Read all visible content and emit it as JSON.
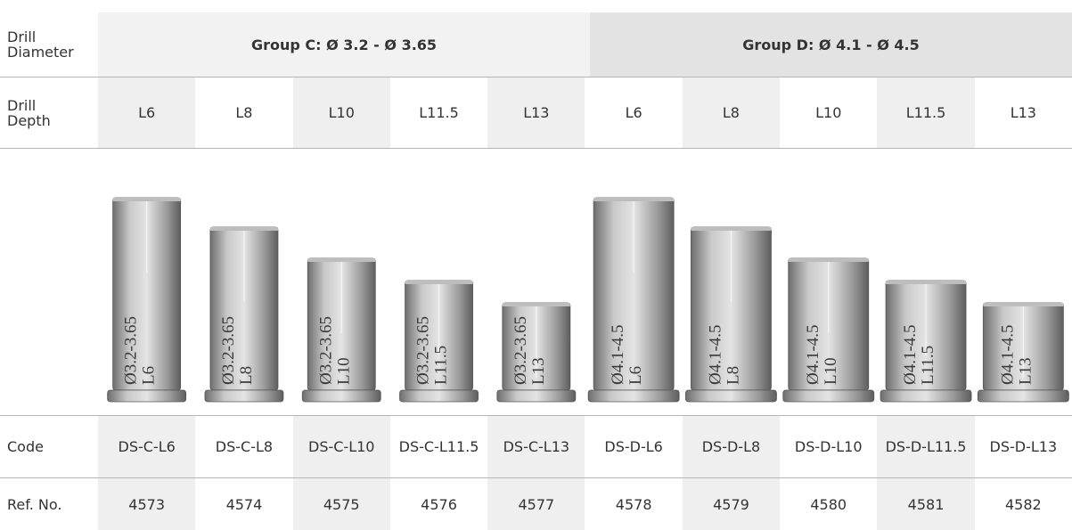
{
  "table": {
    "row_labels": [
      "Drill Diameter",
      "Drill Depth",
      "Code",
      "Ref. No."
    ],
    "groups": [
      "Group C: Ø 3.2 - Ø 3.65",
      "Group D: Ø 4.1 - Ø 4.5"
    ],
    "columns": [
      {
        "depth": "L6",
        "code": "DS-C-L6",
        "ref": 4573,
        "engraving": [
          "Ø3.2-3.65",
          "L6"
        ]
      },
      {
        "depth": "L8",
        "code": "DS-C-L8",
        "ref": 4574,
        "engraving": [
          "Ø3.2-3.65",
          "L8"
        ]
      },
      {
        "depth": "L10",
        "code": "DS-C-L10",
        "ref": 4575,
        "engraving": [
          "Ø3.2-3.65",
          "L10"
        ]
      },
      {
        "depth": "L11.5",
        "code": "DS-C-L11.5",
        "ref": 4576,
        "engraving": [
          "Ø3.2-3.65",
          "L11.5"
        ]
      },
      {
        "depth": "L13",
        "code": "DS-C-L13",
        "ref": 4577,
        "engraving": [
          "Ø3.2-3.65",
          "L13"
        ]
      },
      {
        "depth": "L6",
        "code": "DS-D-L6",
        "ref": 4578,
        "engraving": [
          "Ø4.1-4.5",
          "L6"
        ]
      },
      {
        "depth": "L8",
        "code": "DS-D-L8",
        "ref": 4579,
        "engraving": [
          "Ø4.1-4.5",
          "L8"
        ]
      },
      {
        "depth": "L10",
        "code": "DS-D-L10",
        "ref": 4580,
        "engraving": [
          "Ø4.1-4.5",
          "L10"
        ]
      },
      {
        "depth": "L11.5",
        "code": "DS-D-L11.5",
        "ref": 4581,
        "engraving": [
          "Ø4.1-4.5",
          "L11.5"
        ]
      },
      {
        "depth": "L13",
        "code": "DS-D-L13",
        "ref": 4582,
        "engraving": [
          "Ø4.1-4.5",
          "L13"
        ]
      }
    ]
  }
}
